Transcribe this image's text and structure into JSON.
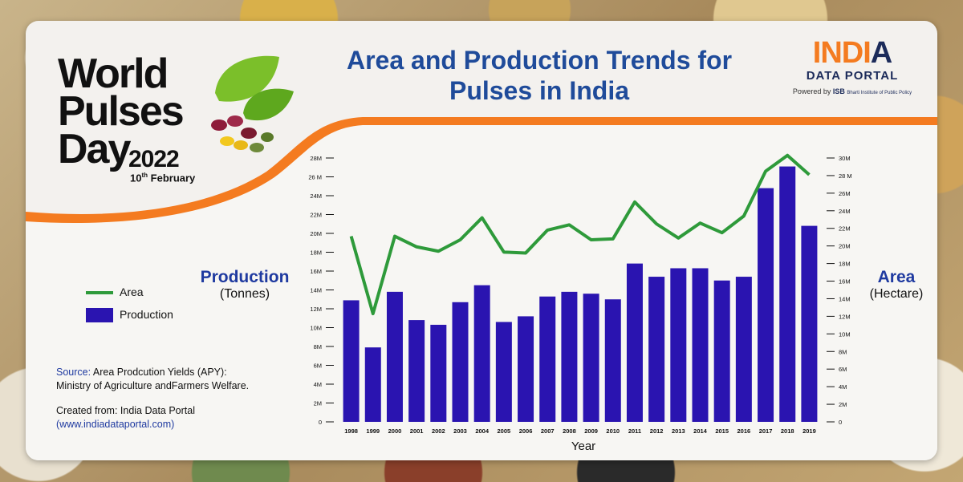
{
  "colors": {
    "bar": "#2a14b0",
    "line": "#2e9a3a",
    "title": "#1f4b9a",
    "accent": "#f47b20"
  },
  "logo": {
    "line1": "World",
    "line2": "Pulses",
    "line3": "Day",
    "year": "2022",
    "date_day": "10",
    "date_sup": "th",
    "date_month": "February"
  },
  "brand": {
    "name_part1": "INDI",
    "name_part2": "A",
    "subtitle": "DATA PORTAL",
    "powered_by": "Powered by",
    "isb": "ISB",
    "isb_sub": "Bharti Institute of Public Policy"
  },
  "left_axis_label": {
    "title": "Production",
    "unit": "(Tonnes)"
  },
  "right_axis_label": {
    "title": "Area",
    "unit": "(Hectare)"
  },
  "legend": {
    "area": "Area",
    "production": "Production"
  },
  "source": {
    "label": "Source:",
    "text1": "Area Prodcution Yields (APY):",
    "text2": "Ministry of Agriculture andFarmers Welfare.",
    "created_label": "Created from: India Data Portal",
    "created_url": "(www.indiadataportal.com)"
  },
  "chart_data": {
    "type": "bar",
    "title": "Area and Production Trends for Pulses in India",
    "xlabel": "Year",
    "categories": [
      "1998",
      "1999",
      "2000",
      "2001",
      "2002",
      "2003",
      "2004",
      "2005",
      "2006",
      "2007",
      "2008",
      "2009",
      "2010",
      "2011",
      "2012",
      "2013",
      "2014",
      "2015",
      "2016",
      "2017",
      "2018",
      "2019"
    ],
    "series": [
      {
        "name": "Production",
        "type": "bar",
        "axis": "left",
        "values": [
          12900000,
          7900000,
          13800000,
          10800000,
          10300000,
          12700000,
          14500000,
          10600000,
          11200000,
          13300000,
          13800000,
          13600000,
          13000000,
          16800000,
          15400000,
          16300000,
          16300000,
          15000000,
          15400000,
          24800000,
          27100000,
          20800000
        ]
      },
      {
        "name": "Area",
        "type": "line",
        "axis": "right",
        "values": [
          21100000,
          12300000,
          21100000,
          19900000,
          19400000,
          20700000,
          23200000,
          19300000,
          19200000,
          21800000,
          22400000,
          20700000,
          20800000,
          25000000,
          22500000,
          20900000,
          22600000,
          21500000,
          23400000,
          28500000,
          30300000,
          28100000
        ]
      }
    ],
    "left_axis": {
      "ylim": [
        0,
        28000000
      ],
      "ticks": [
        "0",
        "2M",
        "4M",
        "6M",
        "8M",
        "10M",
        "12M",
        "14M",
        "16M",
        "18M",
        "20M",
        "22M",
        "24M",
        "26 M",
        "28M"
      ]
    },
    "right_axis": {
      "ylim": [
        0,
        30000000
      ],
      "ticks": [
        "0",
        "2M",
        "4M",
        "6M",
        "8M",
        "10M",
        "12M",
        "14M",
        "16M",
        "18M",
        "20M",
        "22M",
        "24M",
        "26M",
        "28 M",
        "30M"
      ]
    }
  }
}
